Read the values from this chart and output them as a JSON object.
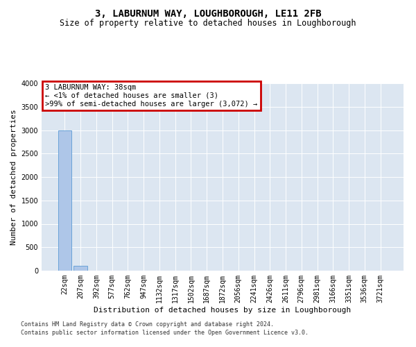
{
  "title": "3, LABURNUM WAY, LOUGHBOROUGH, LE11 2FB",
  "subtitle": "Size of property relative to detached houses in Loughborough",
  "xlabel": "Distribution of detached houses by size in Loughborough",
  "ylabel": "Number of detached properties",
  "footnote1": "Contains HM Land Registry data © Crown copyright and database right 2024.",
  "footnote2": "Contains public sector information licensed under the Open Government Licence v3.0.",
  "categories": [
    "22sqm",
    "207sqm",
    "392sqm",
    "577sqm",
    "762sqm",
    "947sqm",
    "1132sqm",
    "1317sqm",
    "1502sqm",
    "1687sqm",
    "1872sqm",
    "2056sqm",
    "2241sqm",
    "2426sqm",
    "2611sqm",
    "2796sqm",
    "2981sqm",
    "3166sqm",
    "3351sqm",
    "3536sqm",
    "3721sqm"
  ],
  "values": [
    3000,
    100,
    0,
    0,
    0,
    0,
    0,
    0,
    0,
    0,
    0,
    0,
    0,
    0,
    0,
    0,
    0,
    0,
    0,
    0,
    0
  ],
  "bar_color": "#aec6e8",
  "bar_edge_color": "#5b9bd5",
  "background_color": "#dce6f1",
  "ylim": [
    0,
    4000
  ],
  "yticks": [
    0,
    500,
    1000,
    1500,
    2000,
    2500,
    3000,
    3500,
    4000
  ],
  "annotation_line1": "3 LABURNUM WAY: 38sqm",
  "annotation_line2": "← <1% of detached houses are smaller (3)",
  "annotation_line3": ">99% of semi-detached houses are larger (3,072) →",
  "annotation_box_color": "#ffffff",
  "annotation_border_color": "#cc0000",
  "title_fontsize": 10,
  "subtitle_fontsize": 8.5,
  "axis_label_fontsize": 8,
  "tick_fontsize": 7,
  "annotation_fontsize": 7.5,
  "footnote_fontsize": 6
}
